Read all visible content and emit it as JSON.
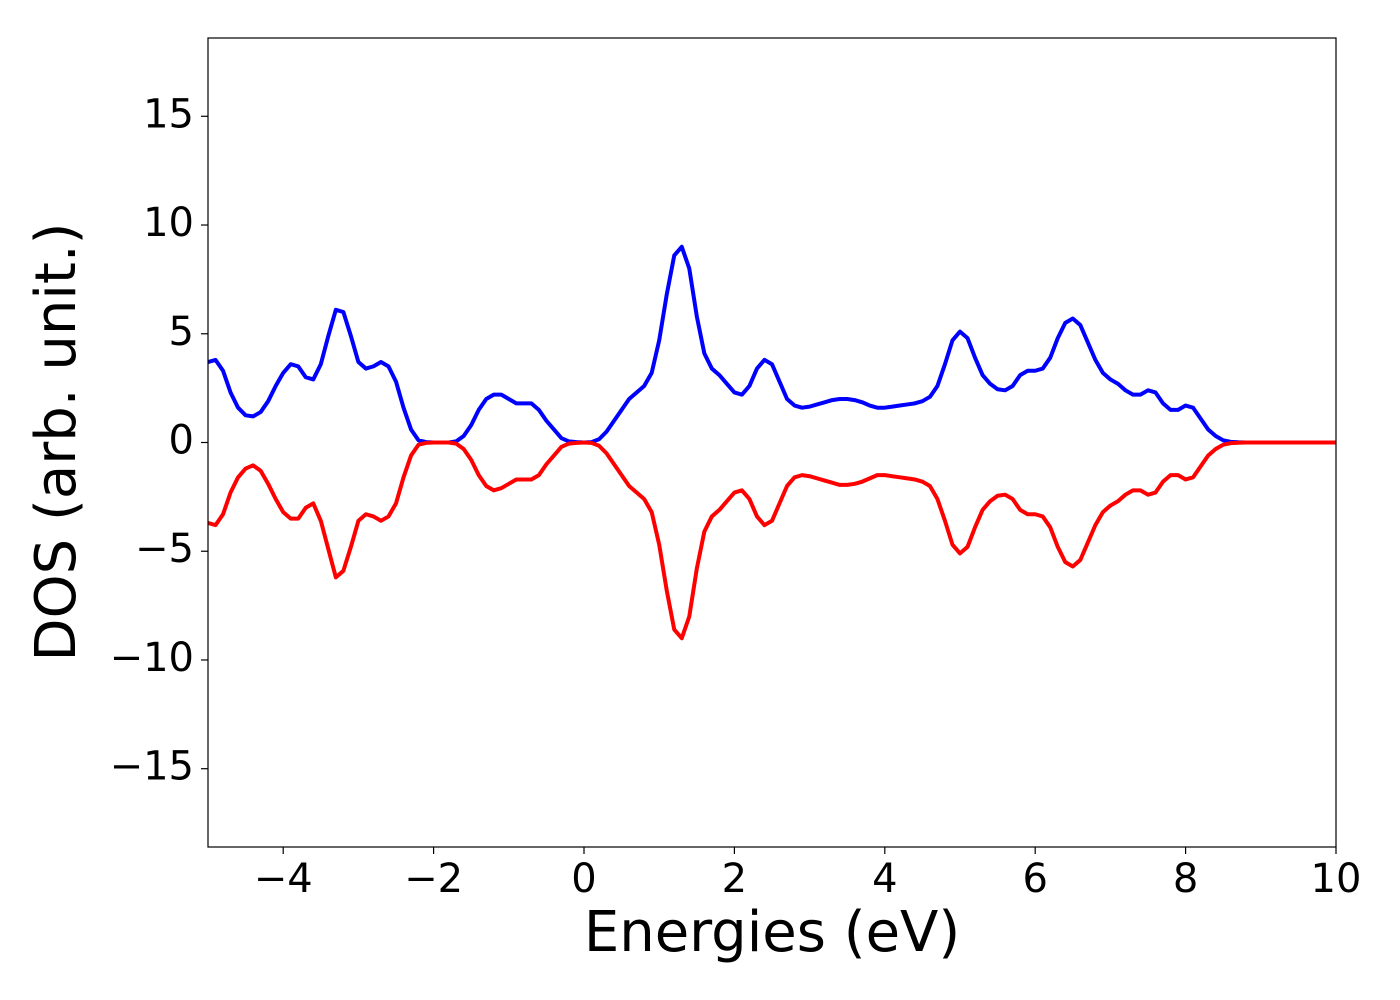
{
  "chart_data": {
    "type": "line",
    "xlabel": "Energies (eV)",
    "ylabel": "DOS (arb. unit.)",
    "x": [
      -5,
      -4.9,
      -4.8,
      -4.7,
      -4.6,
      -4.5,
      -4.4,
      -4.3,
      -4.2,
      -4.1,
      -4,
      -3.9,
      -3.8,
      -3.7,
      -3.6,
      -3.5,
      -3.4,
      -3.3,
      -3.2,
      -3.1,
      -3,
      -2.9,
      -2.8,
      -2.7,
      -2.6,
      -2.5,
      -2.4,
      -2.3,
      -2.2,
      -2.1,
      -2,
      -1.9,
      -1.8,
      -1.7,
      -1.6,
      -1.5,
      -1.4,
      -1.3,
      -1.2,
      -1.1,
      -1,
      -0.9,
      -0.8,
      -0.7,
      -0.6,
      -0.5,
      -0.4,
      -0.3,
      -0.2,
      -0.1,
      0,
      0.1,
      0.2,
      0.3,
      0.4,
      0.5,
      0.6,
      0.7,
      0.8,
      0.9,
      1,
      1.1,
      1.2,
      1.3,
      1.4,
      1.5,
      1.6,
      1.7,
      1.8,
      1.9,
      2,
      2.1,
      2.2,
      2.3,
      2.4,
      2.5,
      2.6,
      2.7,
      2.8,
      2.9,
      3,
      3.1,
      3.2,
      3.3,
      3.4,
      3.5,
      3.6,
      3.7,
      3.8,
      3.9,
      4,
      4.1,
      4.2,
      4.3,
      4.4,
      4.5,
      4.6,
      4.7,
      4.8,
      4.9,
      5,
      5.1,
      5.2,
      5.3,
      5.4,
      5.5,
      5.6,
      5.7,
      5.8,
      5.9,
      6,
      6.1,
      6.2,
      6.3,
      6.4,
      6.5,
      6.6,
      6.7,
      6.8,
      6.9,
      7,
      7.1,
      7.2,
      7.3,
      7.4,
      7.5,
      7.6,
      7.7,
      7.8,
      7.9,
      8,
      8.1,
      8.2,
      8.3,
      8.4,
      8.5,
      8.6,
      8.7,
      8.8,
      9.4,
      10
    ],
    "series": [
      {
        "color": "#0000ff",
        "values": [
          3.7,
          3.8,
          3.3,
          2.3,
          1.6,
          1.25,
          1.2,
          1.4,
          1.9,
          2.6,
          3.2,
          3.6,
          3.5,
          3.0,
          2.9,
          3.6,
          4.9,
          6.1,
          6.0,
          4.9,
          3.7,
          3.4,
          3.5,
          3.7,
          3.5,
          2.8,
          1.6,
          0.6,
          0.1,
          0.02,
          0,
          0,
          0,
          0.05,
          0.3,
          0.8,
          1.5,
          2.0,
          2.2,
          2.2,
          2.0,
          1.8,
          1.8,
          1.8,
          1.5,
          1.0,
          0.6,
          0.2,
          0.05,
          0.02,
          0,
          0.02,
          0.15,
          0.5,
          1.0,
          1.5,
          2.0,
          2.3,
          2.6,
          3.2,
          4.7,
          6.8,
          8.6,
          9.0,
          8.0,
          5.8,
          4.1,
          3.4,
          3.1,
          2.7,
          2.3,
          2.2,
          2.6,
          3.4,
          3.8,
          3.6,
          2.8,
          2.0,
          1.7,
          1.6,
          1.65,
          1.75,
          1.85,
          1.95,
          2.0,
          2.0,
          1.95,
          1.85,
          1.7,
          1.6,
          1.6,
          1.65,
          1.7,
          1.75,
          1.8,
          1.9,
          2.1,
          2.6,
          3.6,
          4.7,
          5.1,
          4.8,
          3.9,
          3.1,
          2.7,
          2.45,
          2.4,
          2.6,
          3.1,
          3.3,
          3.3,
          3.4,
          3.9,
          4.8,
          5.5,
          5.7,
          5.4,
          4.6,
          3.8,
          3.2,
          2.9,
          2.7,
          2.4,
          2.2,
          2.2,
          2.4,
          2.3,
          1.8,
          1.5,
          1.5,
          1.7,
          1.6,
          1.1,
          0.6,
          0.3,
          0.1,
          0.03,
          0.01,
          0,
          0,
          0
        ]
      },
      {
        "color": "#ff0000",
        "values": [
          -3.7,
          -3.8,
          -3.3,
          -2.3,
          -1.6,
          -1.2,
          -1.05,
          -1.3,
          -1.9,
          -2.6,
          -3.2,
          -3.5,
          -3.5,
          -3.0,
          -2.8,
          -3.6,
          -4.9,
          -6.2,
          -5.9,
          -4.8,
          -3.6,
          -3.3,
          -3.4,
          -3.6,
          -3.4,
          -2.8,
          -1.6,
          -0.6,
          -0.1,
          -0.02,
          0,
          0,
          0,
          -0.05,
          -0.3,
          -0.8,
          -1.5,
          -2.0,
          -2.2,
          -2.1,
          -1.9,
          -1.7,
          -1.7,
          -1.7,
          -1.5,
          -1.0,
          -0.6,
          -0.2,
          -0.05,
          -0.02,
          0,
          -0.02,
          -0.15,
          -0.5,
          -1.0,
          -1.5,
          -2.0,
          -2.3,
          -2.6,
          -3.2,
          -4.7,
          -6.8,
          -8.6,
          -9.0,
          -8.0,
          -5.8,
          -4.1,
          -3.4,
          -3.1,
          -2.7,
          -2.3,
          -2.2,
          -2.6,
          -3.4,
          -3.8,
          -3.6,
          -2.8,
          -2.0,
          -1.6,
          -1.5,
          -1.55,
          -1.65,
          -1.75,
          -1.85,
          -1.95,
          -1.95,
          -1.9,
          -1.8,
          -1.65,
          -1.5,
          -1.5,
          -1.55,
          -1.6,
          -1.65,
          -1.7,
          -1.8,
          -2.0,
          -2.6,
          -3.6,
          -4.7,
          -5.1,
          -4.8,
          -3.9,
          -3.1,
          -2.7,
          -2.45,
          -2.4,
          -2.6,
          -3.1,
          -3.3,
          -3.3,
          -3.4,
          -3.9,
          -4.8,
          -5.5,
          -5.7,
          -5.4,
          -4.6,
          -3.8,
          -3.2,
          -2.9,
          -2.7,
          -2.4,
          -2.2,
          -2.2,
          -2.4,
          -2.3,
          -1.8,
          -1.5,
          -1.5,
          -1.7,
          -1.6,
          -1.1,
          -0.6,
          -0.3,
          -0.1,
          -0.03,
          -0.01,
          0,
          0,
          0
        ]
      }
    ],
    "xlim": [
      -5,
      10
    ],
    "xticks": [
      {
        "value": -4,
        "label": "−4"
      },
      {
        "value": -2,
        "label": "−2"
      },
      0,
      2,
      4,
      6,
      8,
      10
    ],
    "ylim": [
      -18.6,
      18.6
    ],
    "yticks": [
      {
        "value": -15,
        "label": "−15"
      },
      {
        "value": -10,
        "label": "−10"
      },
      {
        "value": -5,
        "label": "−5"
      },
      0,
      5,
      10,
      15
    ],
    "grid": false
  }
}
